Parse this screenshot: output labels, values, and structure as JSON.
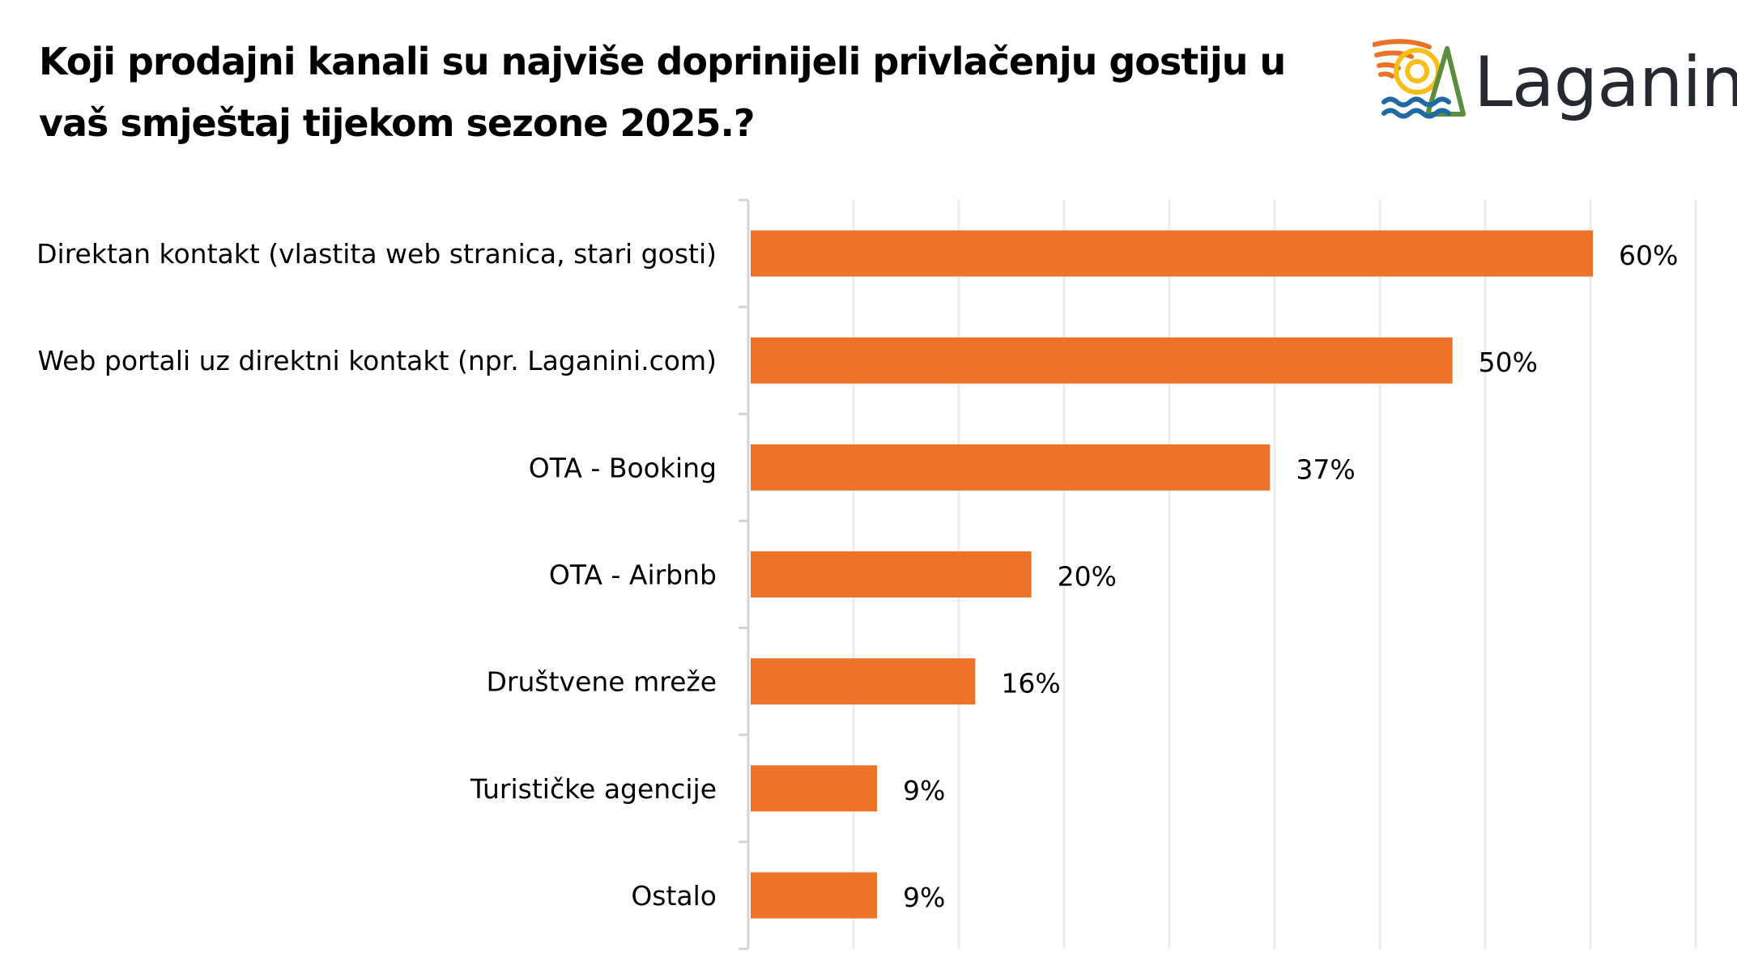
{
  "title_lines": [
    "Koji prodajni kanali su najviše doprinijeli privlačenju gostiju u",
    "vaš smještaj tijekom sezone 2025.?"
  ],
  "logo": {
    "text": "Laganini",
    "colors": {
      "sun_rays": "#ec7228",
      "sun": "#fbbd16",
      "waves": "#1f6aa5",
      "triangle": "#5a8e3c",
      "text": "#262a30"
    }
  },
  "chart_data": {
    "type": "bar",
    "orientation": "horizontal",
    "title": "Koji prodajni kanali su najviše doprinijeli privlačenju gostiju u vaš smještaj tijekom sezone 2025.?",
    "categories": [
      "Direktan kontakt (vlastita web stranica, stari gosti)",
      "Web portali uz direktni kontakt (npr. Laganini.com)",
      "OTA - Booking",
      "OTA - Airbnb",
      "Društvene mreže",
      "Turističke agencije",
      "Ostalo"
    ],
    "values": [
      60,
      50,
      37,
      20,
      16,
      9,
      9
    ],
    "value_labels": [
      "60%",
      "50%",
      "37%",
      "20%",
      "16%",
      "9%",
      "9%"
    ],
    "unit": "%",
    "xlim": [
      0,
      67.5
    ],
    "gridline_step": 7.5,
    "grid": true,
    "xlabel": "",
    "ylabel": "",
    "bar_color": "#ed7328",
    "legend": "none"
  }
}
